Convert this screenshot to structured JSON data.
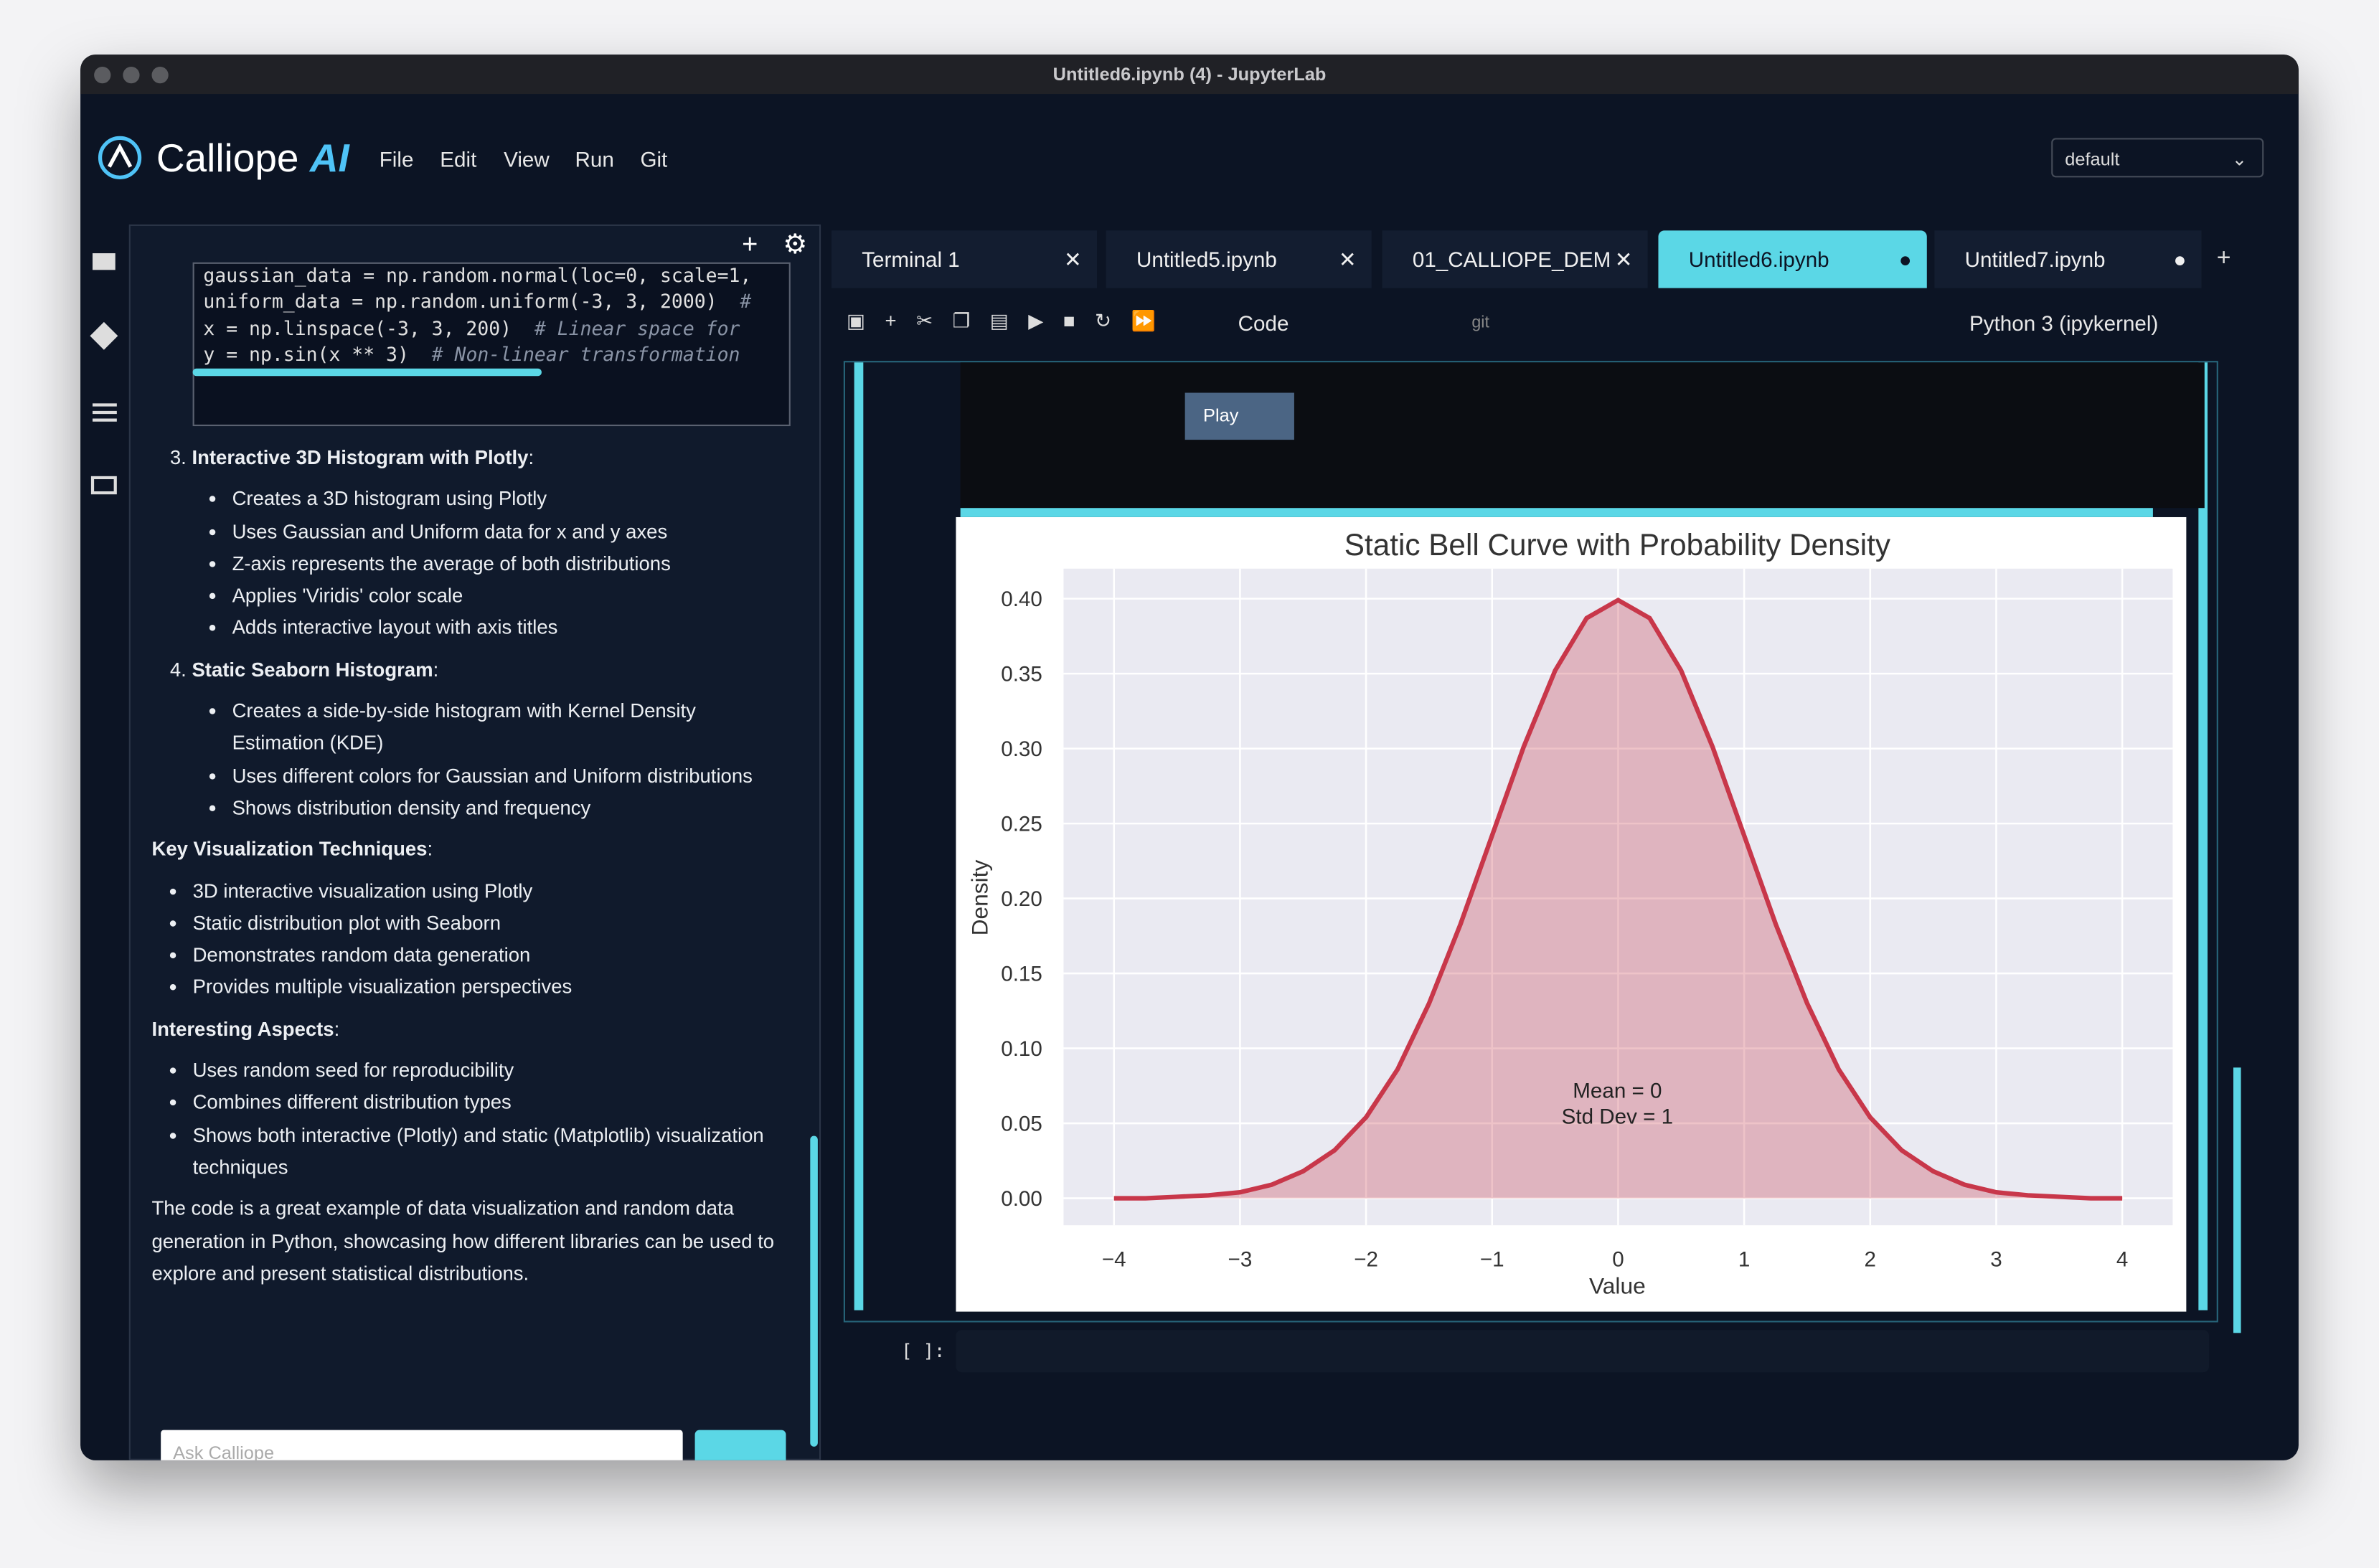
{
  "window_title": "Untitled6.ipynb (4) - JupyterLab",
  "brand": {
    "name": "Calliope",
    "suffix": "AI"
  },
  "menu": [
    "File",
    "Edit",
    "View",
    "Run",
    "Git"
  ],
  "theme_select": "default",
  "code_lines": [
    {
      "code": "gaussian_data = np.random.normal(loc=0, scale=1,",
      "comment": ""
    },
    {
      "code": "uniform_data = np.random.uniform(-3, 3, 2000)  ",
      "comment": "#"
    },
    {
      "code": "x = np.linspace(-3, 3, 200)  ",
      "comment": "# Linear space for"
    },
    {
      "code": "y = np.sin(x ** 3)  ",
      "comment": "# Non-linear transformation"
    }
  ],
  "sections": [
    {
      "number": "3.",
      "title": "Interactive 3D Histogram with Plotly",
      "bullets": [
        "Creates a 3D histogram using Plotly",
        "Uses Gaussian and Uniform data for x and y axes",
        "Z-axis represents the average of both distributions",
        "Applies 'Viridis' color scale",
        "Adds interactive layout with axis titles"
      ]
    },
    {
      "number": "4.",
      "title": "Static Seaborn Histogram",
      "bullets": [
        "Creates a side-by-side histogram with Kernel Density Estimation (KDE)",
        "Uses different colors for Gaussian and Uniform distributions",
        "Shows distribution density and frequency"
      ]
    }
  ],
  "key_techniques": {
    "title": "Key Visualization Techniques",
    "bullets": [
      "3D interactive visualization using Plotly",
      "Static distribution plot with Seaborn",
      "Demonstrates random data generation",
      "Provides multiple visualization perspectives"
    ]
  },
  "interesting": {
    "title": "Interesting Aspects",
    "bullets": [
      "Uses random seed for reproducibility",
      "Combines different distribution types",
      "Shows both interactive (Plotly) and static (Matplotlib) visualization techniques"
    ]
  },
  "summary": "The code is a great example of data visualization and random data generation in Python, showcasing how different libraries can be used to explore and present statistical distributions.",
  "chat_placeholder": "Ask Calliope",
  "tabs": [
    "Terminal 1",
    "Untitled5.ipynb",
    "01_CALLIOPE_DEM",
    "Untitled6.ipynb",
    "Untitled7.ipynb"
  ],
  "toolbar": {
    "cell_type": "Code",
    "git": "git",
    "kernel": "Python 3 (ipykernel)"
  },
  "play_button": "Play",
  "prompt": "[ ]:",
  "chart_data": {
    "type": "line",
    "title": "Static Bell Curve with Probability Density",
    "xlabel": "Value",
    "ylabel": "Density",
    "color": "#c8374a",
    "fill": true,
    "grid": true,
    "annotations": [
      "Mean = 0",
      "Std Dev = 1"
    ],
    "x": [
      -4,
      -3.75,
      -3.5,
      -3.25,
      -3,
      -2.75,
      -2.5,
      -2.25,
      -2,
      -1.75,
      -1.5,
      -1.25,
      -1,
      -0.75,
      -0.5,
      -0.25,
      0,
      0.25,
      0.5,
      0.75,
      1,
      1.25,
      1.5,
      1.75,
      2,
      2.25,
      2.5,
      2.75,
      3,
      3.25,
      3.5,
      3.75,
      4
    ],
    "values": [
      0,
      0,
      0.001,
      0.002,
      0.004,
      0.009,
      0.018,
      0.032,
      0.054,
      0.086,
      0.13,
      0.183,
      0.242,
      0.301,
      0.352,
      0.387,
      0.399,
      0.387,
      0.352,
      0.301,
      0.242,
      0.183,
      0.13,
      0.086,
      0.054,
      0.032,
      0.018,
      0.009,
      0.004,
      0.002,
      0.001,
      0,
      0
    ],
    "xlim": [
      -4.4,
      4.4
    ],
    "ylim": [
      -0.018,
      0.42
    ],
    "xticks": [
      {
        "value": -4,
        "label": "−4"
      },
      {
        "value": -3,
        "label": "−3"
      },
      {
        "value": -2,
        "label": "−2"
      },
      {
        "value": -1,
        "label": "−1"
      },
      0,
      1,
      2,
      3,
      4
    ],
    "yticks": [
      {
        "value": 0,
        "label": "0.00"
      },
      {
        "value": 0.05,
        "label": "0.05"
      },
      {
        "value": 0.1,
        "label": "0.10"
      },
      {
        "value": 0.15,
        "label": "0.15"
      },
      {
        "value": 0.2,
        "label": "0.20"
      },
      {
        "value": 0.25,
        "label": "0.25"
      },
      {
        "value": 0.3,
        "label": "0.30"
      },
      {
        "value": 0.35,
        "label": "0.35"
      },
      {
        "value": 0.4,
        "label": "0.40"
      }
    ]
  }
}
